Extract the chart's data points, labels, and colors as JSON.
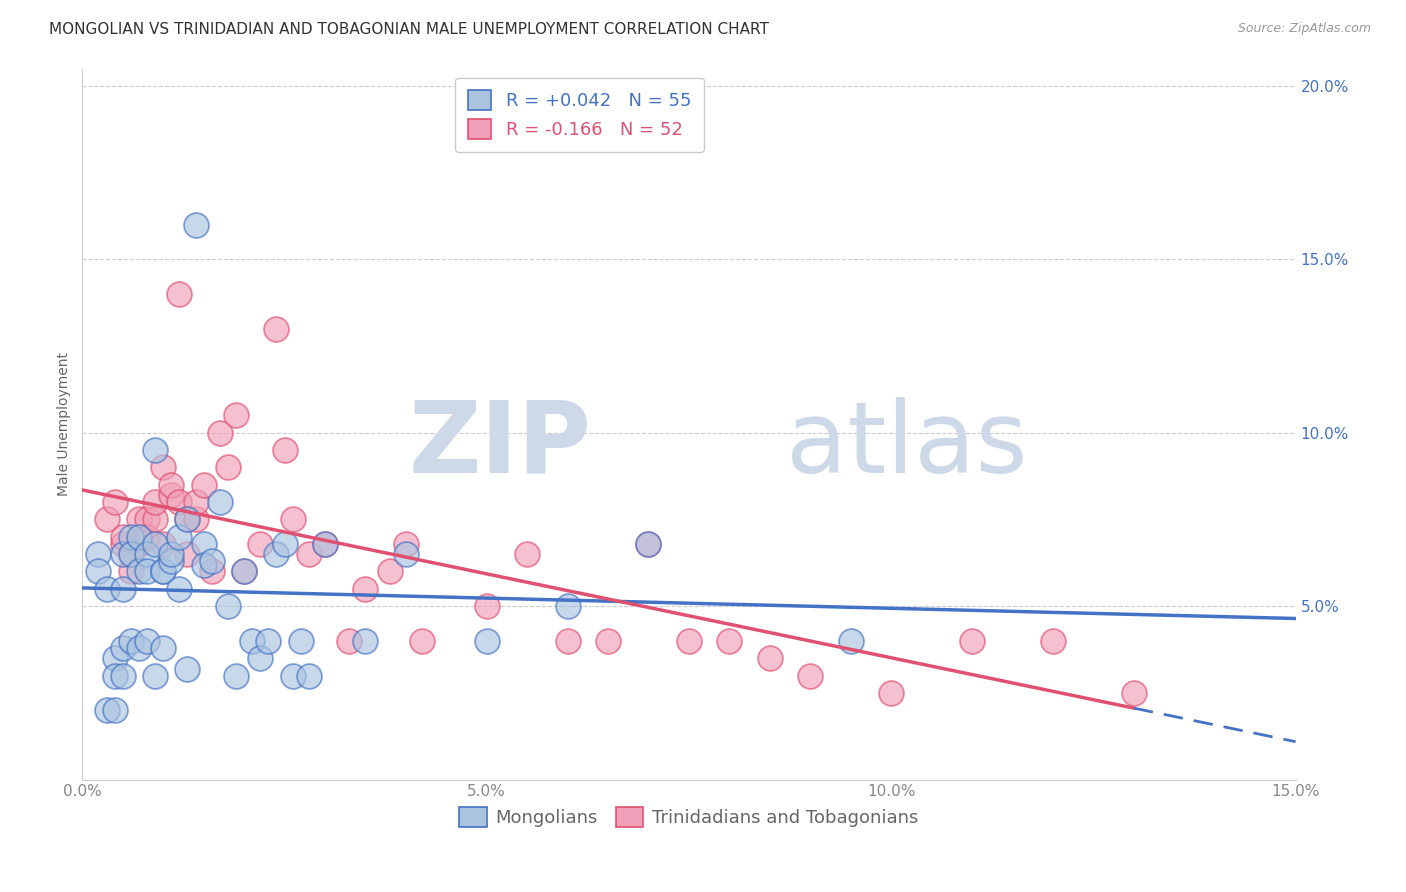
{
  "title": "MONGOLIAN VS TRINIDADIAN AND TOBAGONIAN MALE UNEMPLOYMENT CORRELATION CHART",
  "source": "Source: ZipAtlas.com",
  "ylabel": "Male Unemployment",
  "xlim": [
    0.0,
    0.15
  ],
  "ylim": [
    0.0,
    0.205
  ],
  "xtick_labels": [
    "0.0%",
    "5.0%",
    "10.0%",
    "15.0%"
  ],
  "xtick_vals": [
    0.0,
    0.05,
    0.1,
    0.15
  ],
  "ytick_labels_right": [
    "5.0%",
    "10.0%",
    "15.0%",
    "20.0%"
  ],
  "ytick_vals_right": [
    0.05,
    0.1,
    0.15,
    0.2
  ],
  "gridline_color": "#cccccc",
  "mongolians_color": "#aac4e0",
  "trinidadian_color": "#f0a0b8",
  "mongolians_line_color": "#4472c4",
  "trinidadian_line_color": "#e05070",
  "background_color": "#ffffff",
  "r_mongolian": 0.042,
  "n_mongolian": 55,
  "r_trinidadian": -0.166,
  "n_trinidadian": 52,
  "mongolian_scatter_x": [
    0.002,
    0.002,
    0.003,
    0.003,
    0.004,
    0.004,
    0.004,
    0.005,
    0.005,
    0.005,
    0.005,
    0.006,
    0.006,
    0.006,
    0.007,
    0.007,
    0.007,
    0.008,
    0.008,
    0.008,
    0.009,
    0.009,
    0.009,
    0.01,
    0.01,
    0.01,
    0.011,
    0.011,
    0.012,
    0.012,
    0.013,
    0.013,
    0.014,
    0.015,
    0.015,
    0.016,
    0.017,
    0.018,
    0.019,
    0.02,
    0.021,
    0.022,
    0.023,
    0.024,
    0.025,
    0.026,
    0.027,
    0.028,
    0.03,
    0.035,
    0.04,
    0.05,
    0.06,
    0.07,
    0.095
  ],
  "mongolian_scatter_y": [
    0.065,
    0.06,
    0.055,
    0.02,
    0.035,
    0.03,
    0.02,
    0.065,
    0.055,
    0.038,
    0.03,
    0.07,
    0.065,
    0.04,
    0.07,
    0.06,
    0.038,
    0.065,
    0.06,
    0.04,
    0.095,
    0.068,
    0.03,
    0.06,
    0.06,
    0.038,
    0.063,
    0.065,
    0.07,
    0.055,
    0.075,
    0.032,
    0.16,
    0.068,
    0.062,
    0.063,
    0.08,
    0.05,
    0.03,
    0.06,
    0.04,
    0.035,
    0.04,
    0.065,
    0.068,
    0.03,
    0.04,
    0.03,
    0.068,
    0.04,
    0.065,
    0.04,
    0.05,
    0.068,
    0.04
  ],
  "trinidadian_scatter_x": [
    0.003,
    0.004,
    0.005,
    0.005,
    0.006,
    0.006,
    0.007,
    0.007,
    0.008,
    0.008,
    0.009,
    0.009,
    0.01,
    0.01,
    0.011,
    0.011,
    0.012,
    0.012,
    0.013,
    0.013,
    0.014,
    0.014,
    0.015,
    0.016,
    0.017,
    0.018,
    0.019,
    0.02,
    0.022,
    0.024,
    0.025,
    0.026,
    0.028,
    0.03,
    0.033,
    0.035,
    0.038,
    0.04,
    0.042,
    0.05,
    0.055,
    0.06,
    0.065,
    0.07,
    0.075,
    0.08,
    0.085,
    0.09,
    0.1,
    0.11,
    0.12,
    0.13
  ],
  "trinidadian_scatter_y": [
    0.075,
    0.08,
    0.068,
    0.07,
    0.06,
    0.065,
    0.075,
    0.068,
    0.075,
    0.07,
    0.075,
    0.08,
    0.068,
    0.09,
    0.082,
    0.085,
    0.08,
    0.14,
    0.075,
    0.065,
    0.075,
    0.08,
    0.085,
    0.06,
    0.1,
    0.09,
    0.105,
    0.06,
    0.068,
    0.13,
    0.095,
    0.075,
    0.065,
    0.068,
    0.04,
    0.055,
    0.06,
    0.068,
    0.04,
    0.05,
    0.065,
    0.04,
    0.04,
    0.068,
    0.04,
    0.04,
    0.035,
    0.03,
    0.025,
    0.04,
    0.04,
    0.025
  ],
  "watermark_zip": "ZIP",
  "watermark_atlas": "atlas",
  "watermark_color": "#cdd9e8",
  "title_fontsize": 11,
  "axis_label_fontsize": 10,
  "tick_fontsize": 11,
  "legend_fontsize": 13
}
